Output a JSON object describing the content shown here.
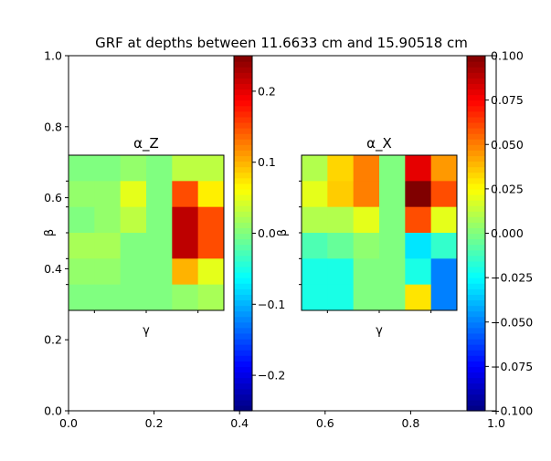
{
  "chart_data": {
    "type": "heatmap",
    "title": "GRF at depths between 11.6633 cm and 15.90518 cm",
    "background_axes": {
      "xlim": [
        0.0,
        1.0
      ],
      "ylim": [
        0.0,
        1.0
      ],
      "xticks": [
        "0.0",
        "0.2",
        "0.4",
        "0.6",
        "0.8",
        "1.0"
      ],
      "yticks": [
        "0.0",
        "0.2",
        "0.4",
        "0.6",
        "0.8",
        "1.0"
      ]
    },
    "panels": [
      {
        "title": "α_Z",
        "xlabel": "γ",
        "ylabel": "β",
        "colorbar": {
          "vmin": -0.25,
          "vmax": 0.25,
          "ticks": [
            "−0.2",
            "−0.1",
            "0.0",
            "0.1",
            "0.2"
          ],
          "tick_values": [
            -0.2,
            -0.1,
            0.0,
            0.1,
            0.2
          ],
          "colormap": "jet"
        },
        "grid": [
          [
            0.0,
            0.0,
            0.01,
            0.0,
            0.03,
            0.03
          ],
          [
            0.01,
            0.01,
            0.05,
            0.0,
            0.15,
            0.07
          ],
          [
            0.0,
            0.01,
            0.03,
            0.0,
            0.22,
            0.15
          ],
          [
            0.02,
            0.02,
            0.0,
            0.0,
            0.22,
            0.15
          ],
          [
            0.01,
            0.01,
            0.0,
            0.0,
            0.1,
            0.05
          ],
          [
            0.0,
            0.0,
            0.0,
            0.0,
            0.01,
            0.02
          ]
        ]
      },
      {
        "title": "α_X",
        "xlabel": "γ",
        "ylabel": "β",
        "colorbar": {
          "vmin": -0.1,
          "vmax": 0.1,
          "ticks": [
            "−0.100",
            "−0.075",
            "−0.050",
            "−0.025",
            "0.000",
            "0.025",
            "0.050",
            "0.075",
            "0.100"
          ],
          "tick_values": [
            -0.1,
            -0.075,
            -0.05,
            -0.025,
            0.0,
            0.025,
            0.05,
            0.075,
            0.1
          ],
          "colormap": "jet"
        },
        "grid": [
          [
            0.01,
            0.033,
            0.05,
            0.0,
            0.08,
            0.045
          ],
          [
            0.02,
            0.035,
            0.05,
            0.0,
            0.1,
            0.06
          ],
          [
            0.01,
            0.01,
            0.02,
            0.0,
            0.06,
            0.02
          ],
          [
            -0.01,
            -0.005,
            0.003,
            0.0,
            -0.03,
            -0.015
          ],
          [
            -0.02,
            -0.02,
            0.0,
            0.0,
            -0.02,
            -0.05
          ],
          [
            -0.02,
            -0.02,
            0.0,
            0.0,
            0.03,
            -0.05
          ]
        ]
      }
    ]
  }
}
